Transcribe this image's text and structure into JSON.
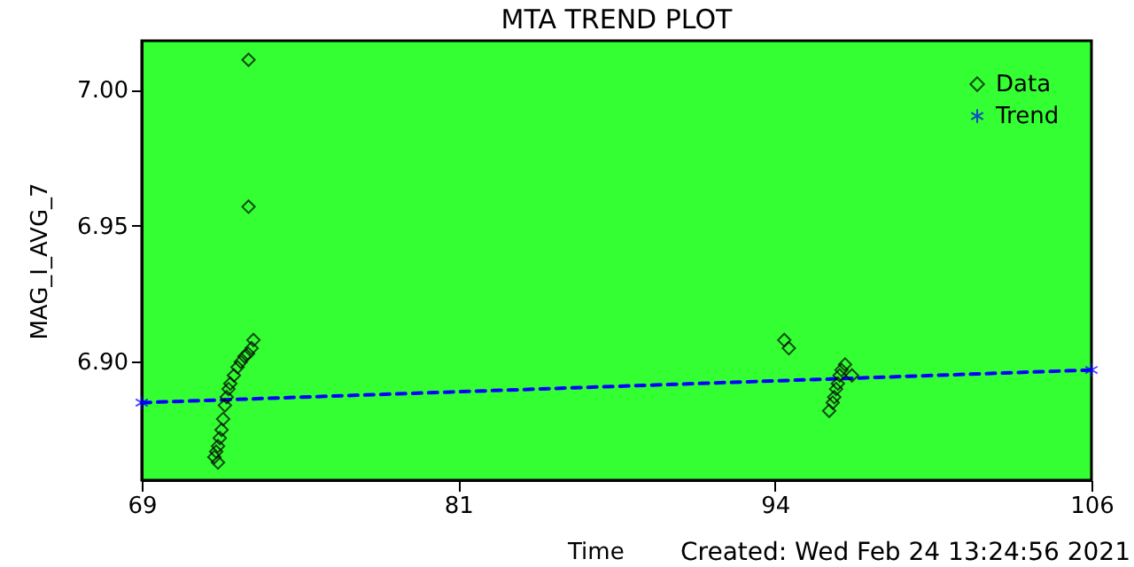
{
  "chart_data": {
    "type": "scatter",
    "title": "MTA TREND PLOT",
    "xlabel": "Time",
    "ylabel": "MAG_I_AVG_7",
    "annotations": [
      "Created: Wed Feb 24 13:24:56 2021"
    ],
    "xlim": [
      69,
      106
    ],
    "xticks": [
      {
        "value": 69,
        "label": "69"
      },
      {
        "value": 81.33,
        "label": "81"
      },
      {
        "value": 93.67,
        "label": "94"
      },
      {
        "value": 106,
        "label": "106"
      }
    ],
    "ylim": [
      6.8565,
      7.018
    ],
    "yticks": [
      {
        "value": 6.9,
        "label": "6.90"
      },
      {
        "value": 6.95,
        "label": "6.95"
      },
      {
        "value": 7.0,
        "label": "7.00"
      }
    ],
    "grid": false,
    "legend": "top right",
    "series": [
      {
        "name": "Data",
        "marker": "diamond",
        "color": "#000000",
        "x": [
          71.83,
          71.9,
          71.97,
          71.97,
          72.04,
          72.11,
          72.17,
          72.24,
          72.31,
          72.38,
          72.45,
          72.59,
          72.73,
          72.86,
          73.0,
          73.14,
          73.28,
          73.35,
          73.16,
          73.16,
          94.03,
          94.21,
          95.78,
          95.92,
          95.98,
          96.05,
          96.12,
          96.19,
          96.26,
          96.4,
          96.67
        ],
        "values": [
          6.865,
          6.867,
          6.869,
          6.863,
          6.872,
          6.875,
          6.879,
          6.884,
          6.887,
          6.89,
          6.892,
          6.895,
          6.898,
          6.9,
          6.902,
          6.903,
          6.905,
          6.908,
          7.011,
          6.957,
          6.908,
          6.905,
          6.882,
          6.885,
          6.887,
          6.89,
          6.892,
          6.895,
          6.897,
          6.899,
          6.895
        ]
      },
      {
        "name": "Trend",
        "type": "line",
        "marker": "cross",
        "line_style": "dashed",
        "color": "#0000ff",
        "x": [
          69,
          106
        ],
        "values": [
          6.885,
          6.897
        ]
      }
    ]
  }
}
